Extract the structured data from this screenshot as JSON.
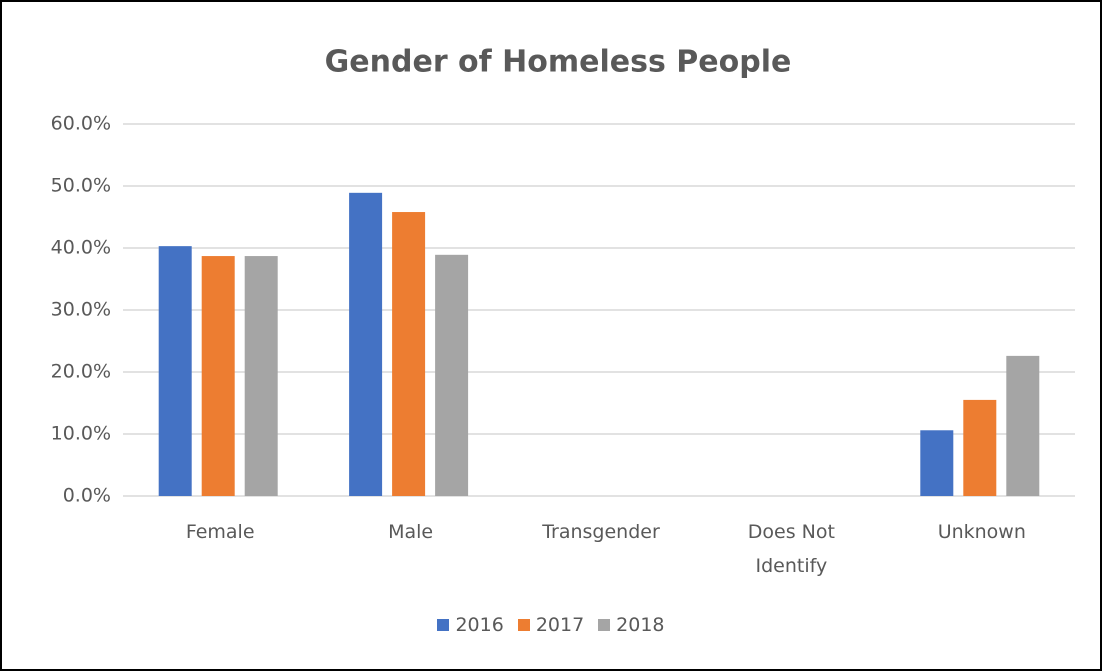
{
  "chart_data": {
    "type": "bar",
    "title": "Gender of Homeless People",
    "categories": [
      "Female",
      "Male",
      "Transgender",
      "Does Not Identify",
      "Unknown"
    ],
    "series": [
      {
        "name": "2016",
        "color": "#4472c4",
        "values": [
          40.3,
          48.9,
          0,
          0,
          10.6
        ]
      },
      {
        "name": "2017",
        "color": "#ed7d31",
        "values": [
          38.7,
          45.8,
          0,
          0,
          15.5
        ]
      },
      {
        "name": "2018",
        "color": "#a5a5a5",
        "values": [
          38.7,
          38.9,
          0,
          0,
          22.6
        ]
      }
    ],
    "ylim": [
      0,
      60
    ],
    "yticks": [
      {
        "value": 0,
        "label": "0.0%"
      },
      {
        "value": 10,
        "label": "10.0%"
      },
      {
        "value": 20,
        "label": "20.0%"
      },
      {
        "value": 30,
        "label": "30.0%"
      },
      {
        "value": 40,
        "label": "40.0%"
      },
      {
        "value": 50,
        "label": "50.0%"
      },
      {
        "value": 60,
        "label": "60.0%"
      }
    ],
    "grid": true,
    "legend": "bottom"
  }
}
